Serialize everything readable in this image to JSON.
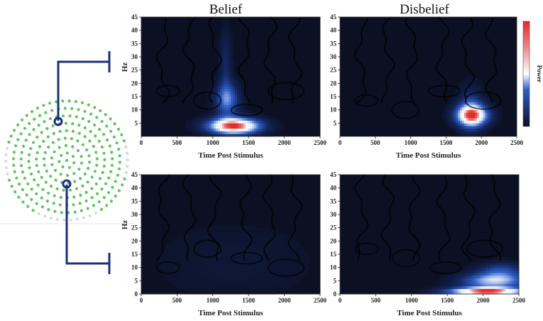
{
  "figure": {
    "column_titles": [
      "Belief",
      "Disbelief"
    ],
    "colorbar_label": "Power",
    "colors": {
      "background_low": "#0b1022",
      "contour": "#000000",
      "power_mid": "#2e5fc8",
      "power_high_white": "#ffffff",
      "power_peak": "#e42a2a",
      "electrode": "#5fc45f",
      "electrode_faint": "#d8d8e6",
      "pointer_line": "#1c2f7e"
    }
  },
  "chart_data": [
    {
      "type": "heatmap",
      "panel": "top-left",
      "column": "Belief",
      "xlabel": "Time Post Stimulus",
      "ylabel": "Hz",
      "xlim": [
        0,
        2500
      ],
      "ylim": [
        0,
        45
      ],
      "xticks": [
        0,
        500,
        1000,
        1500,
        2000,
        2500
      ],
      "yticks": [
        5,
        10,
        15,
        20,
        25,
        30,
        35,
        40,
        45
      ],
      "blobs": [
        {
          "t": 1300,
          "f": 4,
          "st": 260,
          "sf": 2.2,
          "amp": 1.0
        },
        {
          "t": 1200,
          "f": 14,
          "st": 120,
          "sf": 4.5,
          "amp": 0.45
        },
        {
          "t": 1180,
          "f": 28,
          "st": 60,
          "sf": 9,
          "amp": 0.18
        }
      ]
    },
    {
      "type": "heatmap",
      "panel": "top-right",
      "column": "Disbelief",
      "xlabel": "Time Post Stimulus",
      "ylabel": "",
      "xlim": [
        0,
        2500
      ],
      "ylim": [
        0,
        45
      ],
      "xticks": [
        0,
        500,
        1000,
        1500,
        2000,
        2500
      ],
      "yticks": [
        5,
        10,
        15,
        20,
        25,
        30,
        35,
        40,
        45
      ],
      "blobs": [
        {
          "t": 1870,
          "f": 8,
          "st": 170,
          "sf": 2.8,
          "amp": 0.78
        },
        {
          "t": 1850,
          "f": 10,
          "st": 120,
          "sf": 6,
          "amp": 0.3
        }
      ]
    },
    {
      "type": "heatmap",
      "panel": "bottom-left",
      "column": "Belief",
      "xlabel": "Time Post Stimulus",
      "ylabel": "Hz",
      "xlim": [
        0,
        2500
      ],
      "ylim": [
        0,
        45
      ],
      "xticks": [
        0,
        500,
        1000,
        1500,
        2000,
        2500
      ],
      "yticks": [
        0,
        5,
        10,
        15,
        20,
        25,
        30,
        35,
        40,
        45
      ],
      "blobs": [
        {
          "t": 1300,
          "f": 12,
          "st": 900,
          "sf": 12,
          "amp": 0.06
        }
      ]
    },
    {
      "type": "heatmap",
      "panel": "bottom-right",
      "column": "Disbelief",
      "xlabel": "Time Post Stimulus",
      "ylabel": "",
      "xlim": [
        0,
        2500
      ],
      "ylim": [
        0,
        45
      ],
      "xticks": [
        0,
        500,
        1000,
        1500,
        2000,
        2500
      ],
      "yticks": [
        0,
        5,
        10,
        15,
        20,
        25,
        30,
        35,
        40,
        45
      ],
      "blobs": [
        {
          "t": 2050,
          "f": 1,
          "st": 380,
          "sf": 1.1,
          "amp": 1.0
        },
        {
          "t": 2150,
          "f": 5,
          "st": 330,
          "sf": 2.0,
          "amp": 0.55
        },
        {
          "t": 2250,
          "f": 9,
          "st": 230,
          "sf": 2.2,
          "amp": 0.3
        }
      ]
    }
  ]
}
